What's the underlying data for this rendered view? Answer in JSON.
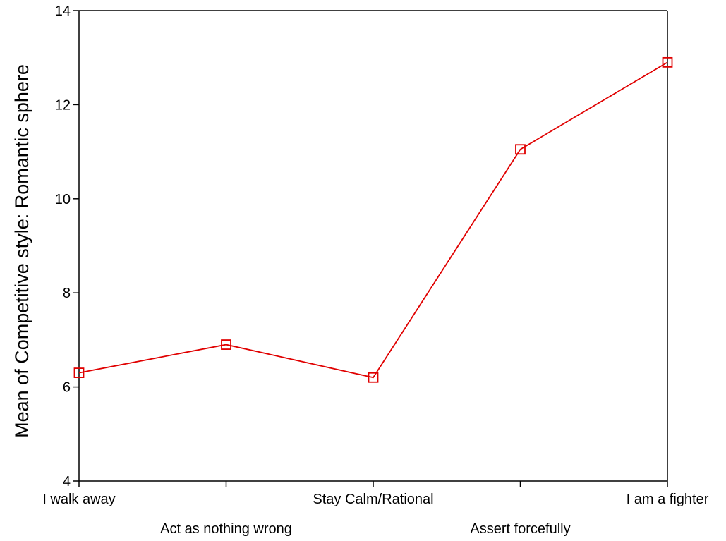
{
  "chart_data": {
    "type": "line",
    "categories": [
      "I walk away",
      "Act as nothing wrong",
      "Stay Calm/Rational",
      "Assert forcefully",
      "I am a fighter"
    ],
    "series": [
      {
        "values": [
          6.3,
          6.9,
          6.2,
          11.05,
          12.9
        ],
        "color": "#e00000",
        "marker": "square-open"
      }
    ],
    "title": "",
    "xlabel": "",
    "ylabel": "Mean of Competitive style:  Romantic sphere",
    "ylim": [
      4,
      14
    ],
    "yticks": [
      "4",
      "6",
      "8",
      "10",
      "12",
      "14"
    ],
    "grid": false
  }
}
